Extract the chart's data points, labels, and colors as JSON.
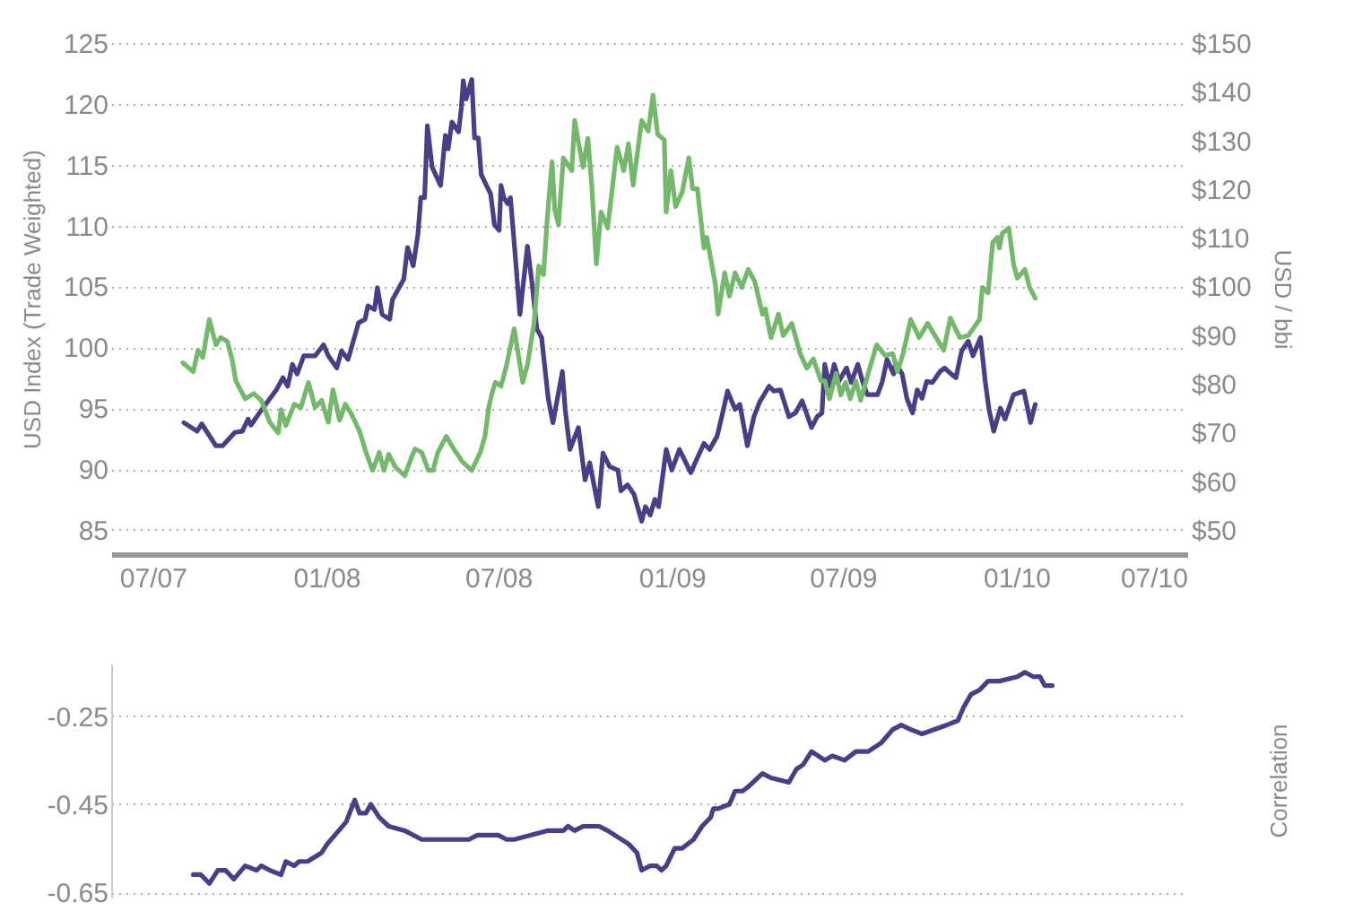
{
  "chart_data": [
    {
      "type": "line",
      "ylabel": "USD Index (Trade Weighted)",
      "y2label": "USD / bbi",
      "grid": "y",
      "line_style": "solid",
      "xlim": [
        "2007-05-18",
        "2010-07-01"
      ],
      "xticks": [
        {
          "value": "2007-07-01",
          "label": "07/07"
        },
        {
          "value": "2008-01-01",
          "label": "01/08"
        },
        {
          "value": "2008-07-01",
          "label": "07/08"
        },
        {
          "value": "2009-01-01",
          "label": "01/09"
        },
        {
          "value": "2009-07-01",
          "label": "07/09"
        },
        {
          "value": "2010-01-01",
          "label": "01/10"
        },
        {
          "value": "2010-07-01",
          "label": "07/10"
        }
      ],
      "ylim": [
        83,
        125
      ],
      "yticks": [
        85,
        90,
        95,
        100,
        105,
        110,
        115,
        120,
        125
      ],
      "y2lim": [
        45,
        150
      ],
      "y2ticks": [
        {
          "value": 50,
          "label": "$50"
        },
        {
          "value": 60,
          "label": "$60"
        },
        {
          "value": 70,
          "label": "$70"
        },
        {
          "value": 80,
          "label": "$80"
        },
        {
          "value": 90,
          "label": "$90"
        },
        {
          "value": 100,
          "label": "$100"
        },
        {
          "value": 110,
          "label": "$110"
        },
        {
          "value": 120,
          "label": "$120"
        },
        {
          "value": 130,
          "label": "$130"
        },
        {
          "value": 140,
          "label": "$140"
        },
        {
          "value": 150,
          "label": "$150"
        }
      ],
      "series": [
        {
          "color": "#4a3f86",
          "x": [
            "2007-08-03",
            "2007-08-17",
            "2007-08-22",
            "2007-09-06",
            "2007-09-13",
            "2007-09-26",
            "2007-10-04",
            "2007-10-10",
            "2007-10-13",
            "2007-10-22",
            "2007-11-09",
            "2007-11-16",
            "2007-11-21",
            "2007-11-26",
            "2007-12-01",
            "2007-12-08",
            "2007-12-20",
            "2007-12-29",
            "2008-01-03",
            "2008-01-12",
            "2008-01-17",
            "2008-01-24",
            "2008-02-04",
            "2008-02-11",
            "2008-02-14",
            "2008-02-21",
            "2008-02-24",
            "2008-02-29",
            "2008-03-08",
            "2008-03-11",
            "2008-03-23",
            "2008-03-27",
            "2008-04-02",
            "2008-04-07",
            "2008-04-10",
            "2008-04-14",
            "2008-04-17",
            "2008-04-22",
            "2008-05-01",
            "2008-05-06",
            "2008-05-09",
            "2008-05-13",
            "2008-05-20",
            "2008-05-23",
            "2008-05-25",
            "2008-05-28",
            "2008-06-03",
            "2008-06-06",
            "2008-06-10",
            "2008-06-13",
            "2008-06-23",
            "2008-06-27",
            "2008-07-02",
            "2008-07-04",
            "2008-07-07",
            "2008-07-11",
            "2008-07-14",
            "2008-07-19",
            "2008-07-24",
            "2008-08-01",
            "2008-08-06",
            "2008-08-11",
            "2008-08-16",
            "2008-08-23",
            "2008-08-28",
            "2008-09-07",
            "2008-09-10",
            "2008-09-15",
            "2008-09-24",
            "2008-10-01",
            "2008-10-06",
            "2008-10-15",
            "2008-10-20",
            "2008-10-27",
            "2008-11-05",
            "2008-11-08",
            "2008-11-15",
            "2008-11-22",
            "2008-11-30",
            "2008-12-04",
            "2008-12-09",
            "2008-12-14",
            "2008-12-18",
            "2008-12-26",
            "2009-01-01",
            "2009-01-09",
            "2009-01-21",
            "2009-02-04",
            "2009-02-10",
            "2009-02-18",
            "2009-02-25",
            "2009-03-01",
            "2009-03-09",
            "2009-03-14",
            "2009-03-22",
            "2009-03-29",
            "2009-04-04",
            "2009-04-14",
            "2009-04-19",
            "2009-04-26",
            "2009-05-05",
            "2009-05-12",
            "2009-05-19",
            "2009-05-29",
            "2009-06-04",
            "2009-06-09",
            "2009-06-12",
            "2009-06-17",
            "2009-06-22",
            "2009-06-27",
            "2009-07-05",
            "2009-07-10",
            "2009-07-17",
            "2009-07-22",
            "2009-07-27",
            "2009-08-07",
            "2009-08-12",
            "2009-08-17",
            "2009-08-24",
            "2009-08-26",
            "2009-09-02",
            "2009-09-07",
            "2009-09-13",
            "2009-09-18",
            "2009-09-23",
            "2009-09-28",
            "2009-10-04",
            "2009-10-12",
            "2009-10-17",
            "2009-10-24",
            "2009-10-29",
            "2009-11-04",
            "2009-11-11",
            "2009-11-16",
            "2009-11-24",
            "2009-11-29",
            "2009-12-03",
            "2009-12-08",
            "2009-12-15",
            "2009-12-20",
            "2009-12-29",
            "2010-01-09",
            "2010-01-16",
            "2010-01-21"
          ],
          "values": [
            93.8,
            93.1,
            93.7,
            91.9,
            91.9,
            93.0,
            93.1,
            94.1,
            93.6,
            94.6,
            96.5,
            97.5,
            96.8,
            98.6,
            97.8,
            99.3,
            99.3,
            100.2,
            99.3,
            98.3,
            99.7,
            99.0,
            102.0,
            102.3,
            103.4,
            103.1,
            104.9,
            102.7,
            102.3,
            103.9,
            105.6,
            108.2,
            106.7,
            109.3,
            112.3,
            112.3,
            118.2,
            114.8,
            113.3,
            117.4,
            116.3,
            118.5,
            117.7,
            119.7,
            121.9,
            120.4,
            122.0,
            117.2,
            117.2,
            114.2,
            112.6,
            110.1,
            109.6,
            113.3,
            112.3,
            111.8,
            112.3,
            107.6,
            102.7,
            108.3,
            105.2,
            101.5,
            100.8,
            95.8,
            93.8,
            98.0,
            94.9,
            91.6,
            93.4,
            89.1,
            90.5,
            86.9,
            91.3,
            90.2,
            89.9,
            88.2,
            88.7,
            87.9,
            85.7,
            86.9,
            86.2,
            87.5,
            86.9,
            91.6,
            89.9,
            91.6,
            89.7,
            92.1,
            91.6,
            92.7,
            95.0,
            96.4,
            94.9,
            95.3,
            91.9,
            94.3,
            95.5,
            96.8,
            96.4,
            96.5,
            94.3,
            94.6,
            95.6,
            93.4,
            94.3,
            94.6,
            98.6,
            96.8,
            98.6,
            97.2,
            98.3,
            97.1,
            98.6,
            97.2,
            96.1,
            96.1,
            97.2,
            99.0,
            97.8,
            98.7,
            97.8,
            95.8,
            94.6,
            96.5,
            95.8,
            97.2,
            97.1,
            98.0,
            98.3,
            97.8,
            97.5,
            99.7,
            100.5,
            99.3,
            100.8,
            97.2,
            94.9,
            93.1,
            95.0,
            94.1,
            96.1,
            96.4,
            93.8,
            95.3
          ]
        },
        {
          "color": "#74b86b",
          "axis": "y2",
          "x": [
            "2007-08-02",
            "2007-08-13",
            "2007-08-18",
            "2007-08-23",
            "2007-08-30",
            "2007-09-06",
            "2007-09-11",
            "2007-09-18",
            "2007-09-23",
            "2007-09-27",
            "2007-10-07",
            "2007-10-16",
            "2007-10-24",
            "2007-11-02",
            "2007-11-11",
            "2007-11-14",
            "2007-11-19",
            "2007-11-28",
            "2007-12-05",
            "2007-12-13",
            "2007-12-20",
            "2007-12-27",
            "2008-01-03",
            "2008-01-08",
            "2008-01-15",
            "2008-01-21",
            "2008-01-27",
            "2008-02-05",
            "2008-02-12",
            "2008-02-19",
            "2008-02-26",
            "2008-03-02",
            "2008-03-07",
            "2008-03-14",
            "2008-03-24",
            "2008-03-31",
            "2008-04-04",
            "2008-04-11",
            "2008-04-18",
            "2008-04-23",
            "2008-04-28",
            "2008-05-07",
            "2008-05-15",
            "2008-05-24",
            "2008-06-03",
            "2008-06-12",
            "2008-06-17",
            "2008-06-21",
            "2008-06-24",
            "2008-06-28",
            "2008-07-04",
            "2008-07-10",
            "2008-07-18",
            "2008-07-27",
            "2008-08-01",
            "2008-08-08",
            "2008-08-13",
            "2008-08-18",
            "2008-08-22",
            "2008-08-27",
            "2008-08-30",
            "2008-09-03",
            "2008-09-08",
            "2008-09-17",
            "2008-09-20",
            "2008-09-25",
            "2008-09-29",
            "2008-10-04",
            "2008-10-08",
            "2008-10-13",
            "2008-10-18",
            "2008-10-25",
            "2008-11-04",
            "2008-11-11",
            "2008-11-16",
            "2008-11-21",
            "2008-11-30",
            "2008-12-07",
            "2008-12-12",
            "2008-12-17",
            "2008-12-24",
            "2008-12-26",
            "2008-12-31",
            "2009-01-05",
            "2009-01-12",
            "2009-01-19",
            "2009-01-23",
            "2009-01-28",
            "2009-02-04",
            "2009-02-07",
            "2009-02-16",
            "2009-02-19",
            "2009-02-26",
            "2009-03-03",
            "2009-03-09",
            "2009-03-16",
            "2009-03-23",
            "2009-03-30",
            "2009-04-07",
            "2009-04-10",
            "2009-04-16",
            "2009-04-24",
            "2009-04-29",
            "2009-05-08",
            "2009-05-17",
            "2009-05-24",
            "2009-05-31",
            "2009-06-08",
            "2009-06-12",
            "2009-06-17",
            "2009-06-24",
            "2009-06-29",
            "2009-07-04",
            "2009-07-09",
            "2009-07-15",
            "2009-07-20",
            "2009-07-28",
            "2009-08-06",
            "2009-08-15",
            "2009-08-23",
            "2009-08-28",
            "2009-09-03",
            "2009-09-11",
            "2009-09-20",
            "2009-09-29",
            "2009-10-16",
            "2009-10-23",
            "2009-11-02",
            "2009-11-11",
            "2009-11-23",
            "2009-11-26",
            "2009-12-02",
            "2009-12-07",
            "2009-12-12",
            "2009-12-14",
            "2009-12-17",
            "2009-12-24",
            "2009-12-29",
            "2010-01-02",
            "2010-01-10",
            "2010-01-15",
            "2010-01-21"
          ],
          "values": [
            84.3,
            82.5,
            86.9,
            85.4,
            93.2,
            88.0,
            89.5,
            88.7,
            85.1,
            80.6,
            76.9,
            78.0,
            76.6,
            72.1,
            69.9,
            74.7,
            71.4,
            75.8,
            75.1,
            80.3,
            75.1,
            76.6,
            72.1,
            78.8,
            72.5,
            75.8,
            74.0,
            70.3,
            65.9,
            62.2,
            65.9,
            62.2,
            65.5,
            62.9,
            61.1,
            64.8,
            66.6,
            65.9,
            62.2,
            62.2,
            65.9,
            69.2,
            66.6,
            64.0,
            62.2,
            65.9,
            69.2,
            75.1,
            77.7,
            80.3,
            79.5,
            83.9,
            91.3,
            80.3,
            83.9,
            92.4,
            104.2,
            102.4,
            113.8,
            125.6,
            115.7,
            112.7,
            126.4,
            123.8,
            134.1,
            128.6,
            124.5,
            130.4,
            121.2,
            104.6,
            115.3,
            112.0,
            128.6,
            123.8,
            129.3,
            120.8,
            134.1,
            131.9,
            139.3,
            131.2,
            130.1,
            115.3,
            123.8,
            116.4,
            119.4,
            126.4,
            120.1,
            120.1,
            107.9,
            110.1,
            100.6,
            94.3,
            102.8,
            98.0,
            102.8,
            99.8,
            103.5,
            100.9,
            94.3,
            95.4,
            89.5,
            94.3,
            89.9,
            92.4,
            86.2,
            83.2,
            85.1,
            80.6,
            80.6,
            76.9,
            82.1,
            77.7,
            80.3,
            76.9,
            80.6,
            76.6,
            82.1,
            88.0,
            85.8,
            86.2,
            82.5,
            86.2,
            93.2,
            89.5,
            92.4,
            86.9,
            93.5,
            89.5,
            89.9,
            93.2,
            99.8,
            98.7,
            109.0,
            110.1,
            107.9,
            110.9,
            112.0,
            104.6,
            101.7,
            103.5,
            99.8,
            97.6
          ]
        }
      ]
    },
    {
      "type": "line",
      "ylabel": "Correlation",
      "grid": "y",
      "line_style": "solid",
      "tick_labels": "y",
      "xlim": [
        "2007-05-18",
        "2010-07-01"
      ],
      "ylim": [
        -0.66,
        -0.13
      ],
      "yticks": [
        -0.65,
        -0.45,
        -0.25
      ],
      "series": [
        {
          "color": "#4a3f86",
          "x": [
            "2007-08-13",
            "2007-08-21",
            "2007-08-30",
            "2007-09-08",
            "2007-09-16",
            "2007-09-25",
            "2007-10-07",
            "2007-10-19",
            "2007-10-24",
            "2007-11-02",
            "2007-11-14",
            "2007-11-19",
            "2007-11-28",
            "2007-12-03",
            "2007-12-12",
            "2007-12-27",
            "2008-01-02",
            "2008-01-10",
            "2008-01-22",
            "2008-01-31",
            "2008-02-05",
            "2008-02-12",
            "2008-02-17",
            "2008-02-26",
            "2008-03-07",
            "2008-03-24",
            "2008-04-11",
            "2008-05-05",
            "2008-05-31",
            "2008-06-09",
            "2008-06-19",
            "2008-07-01",
            "2008-07-10",
            "2008-07-18",
            "2008-08-05",
            "2008-08-22",
            "2008-09-08",
            "2008-09-13",
            "2008-09-20",
            "2008-09-29",
            "2008-10-16",
            "2008-10-25",
            "2008-11-16",
            "2008-11-25",
            "2008-11-30",
            "2008-12-09",
            "2008-12-16",
            "2008-12-21",
            "2008-12-26",
            "2009-01-04",
            "2009-01-12",
            "2009-01-24",
            "2009-02-02",
            "2009-02-11",
            "2009-02-14",
            "2009-02-19",
            "2009-03-03",
            "2009-03-09",
            "2009-03-17",
            "2009-03-23",
            "2009-04-07",
            "2009-04-16",
            "2009-05-05",
            "2009-05-13",
            "2009-05-20",
            "2009-05-29",
            "2009-06-12",
            "2009-06-20",
            "2009-07-03",
            "2009-07-15",
            "2009-07-28",
            "2009-08-11",
            "2009-08-23",
            "2009-09-01",
            "2009-09-11",
            "2009-09-23",
            "2009-10-19",
            "2009-10-31",
            "2009-11-06",
            "2009-11-14",
            "2009-11-23",
            "2009-12-02",
            "2009-12-14",
            "2010-01-02",
            "2010-01-10",
            "2010-01-19",
            "2010-01-26",
            "2010-01-31",
            "2010-02-08"
          ],
          "values": [
            -0.61,
            -0.61,
            -0.63,
            -0.6,
            -0.6,
            -0.62,
            -0.59,
            -0.6,
            -0.59,
            -0.6,
            -0.61,
            -0.58,
            -0.59,
            -0.58,
            -0.58,
            -0.56,
            -0.54,
            -0.52,
            -0.49,
            -0.44,
            -0.47,
            -0.47,
            -0.45,
            -0.48,
            -0.5,
            -0.51,
            -0.53,
            -0.53,
            -0.53,
            -0.52,
            -0.52,
            -0.52,
            -0.53,
            -0.53,
            -0.52,
            -0.51,
            -0.51,
            -0.5,
            -0.51,
            -0.5,
            -0.5,
            -0.51,
            -0.54,
            -0.56,
            -0.6,
            -0.59,
            -0.59,
            -0.6,
            -0.59,
            -0.55,
            -0.55,
            -0.53,
            -0.5,
            -0.48,
            -0.46,
            -0.46,
            -0.45,
            -0.42,
            -0.42,
            -0.41,
            -0.38,
            -0.39,
            -0.4,
            -0.37,
            -0.36,
            -0.33,
            -0.35,
            -0.34,
            -0.35,
            -0.33,
            -0.33,
            -0.31,
            -0.28,
            -0.27,
            -0.28,
            -0.29,
            -0.27,
            -0.26,
            -0.23,
            -0.2,
            -0.19,
            -0.17,
            -0.17,
            -0.16,
            -0.15,
            -0.16,
            -0.16,
            -0.18,
            -0.18
          ]
        }
      ]
    }
  ]
}
